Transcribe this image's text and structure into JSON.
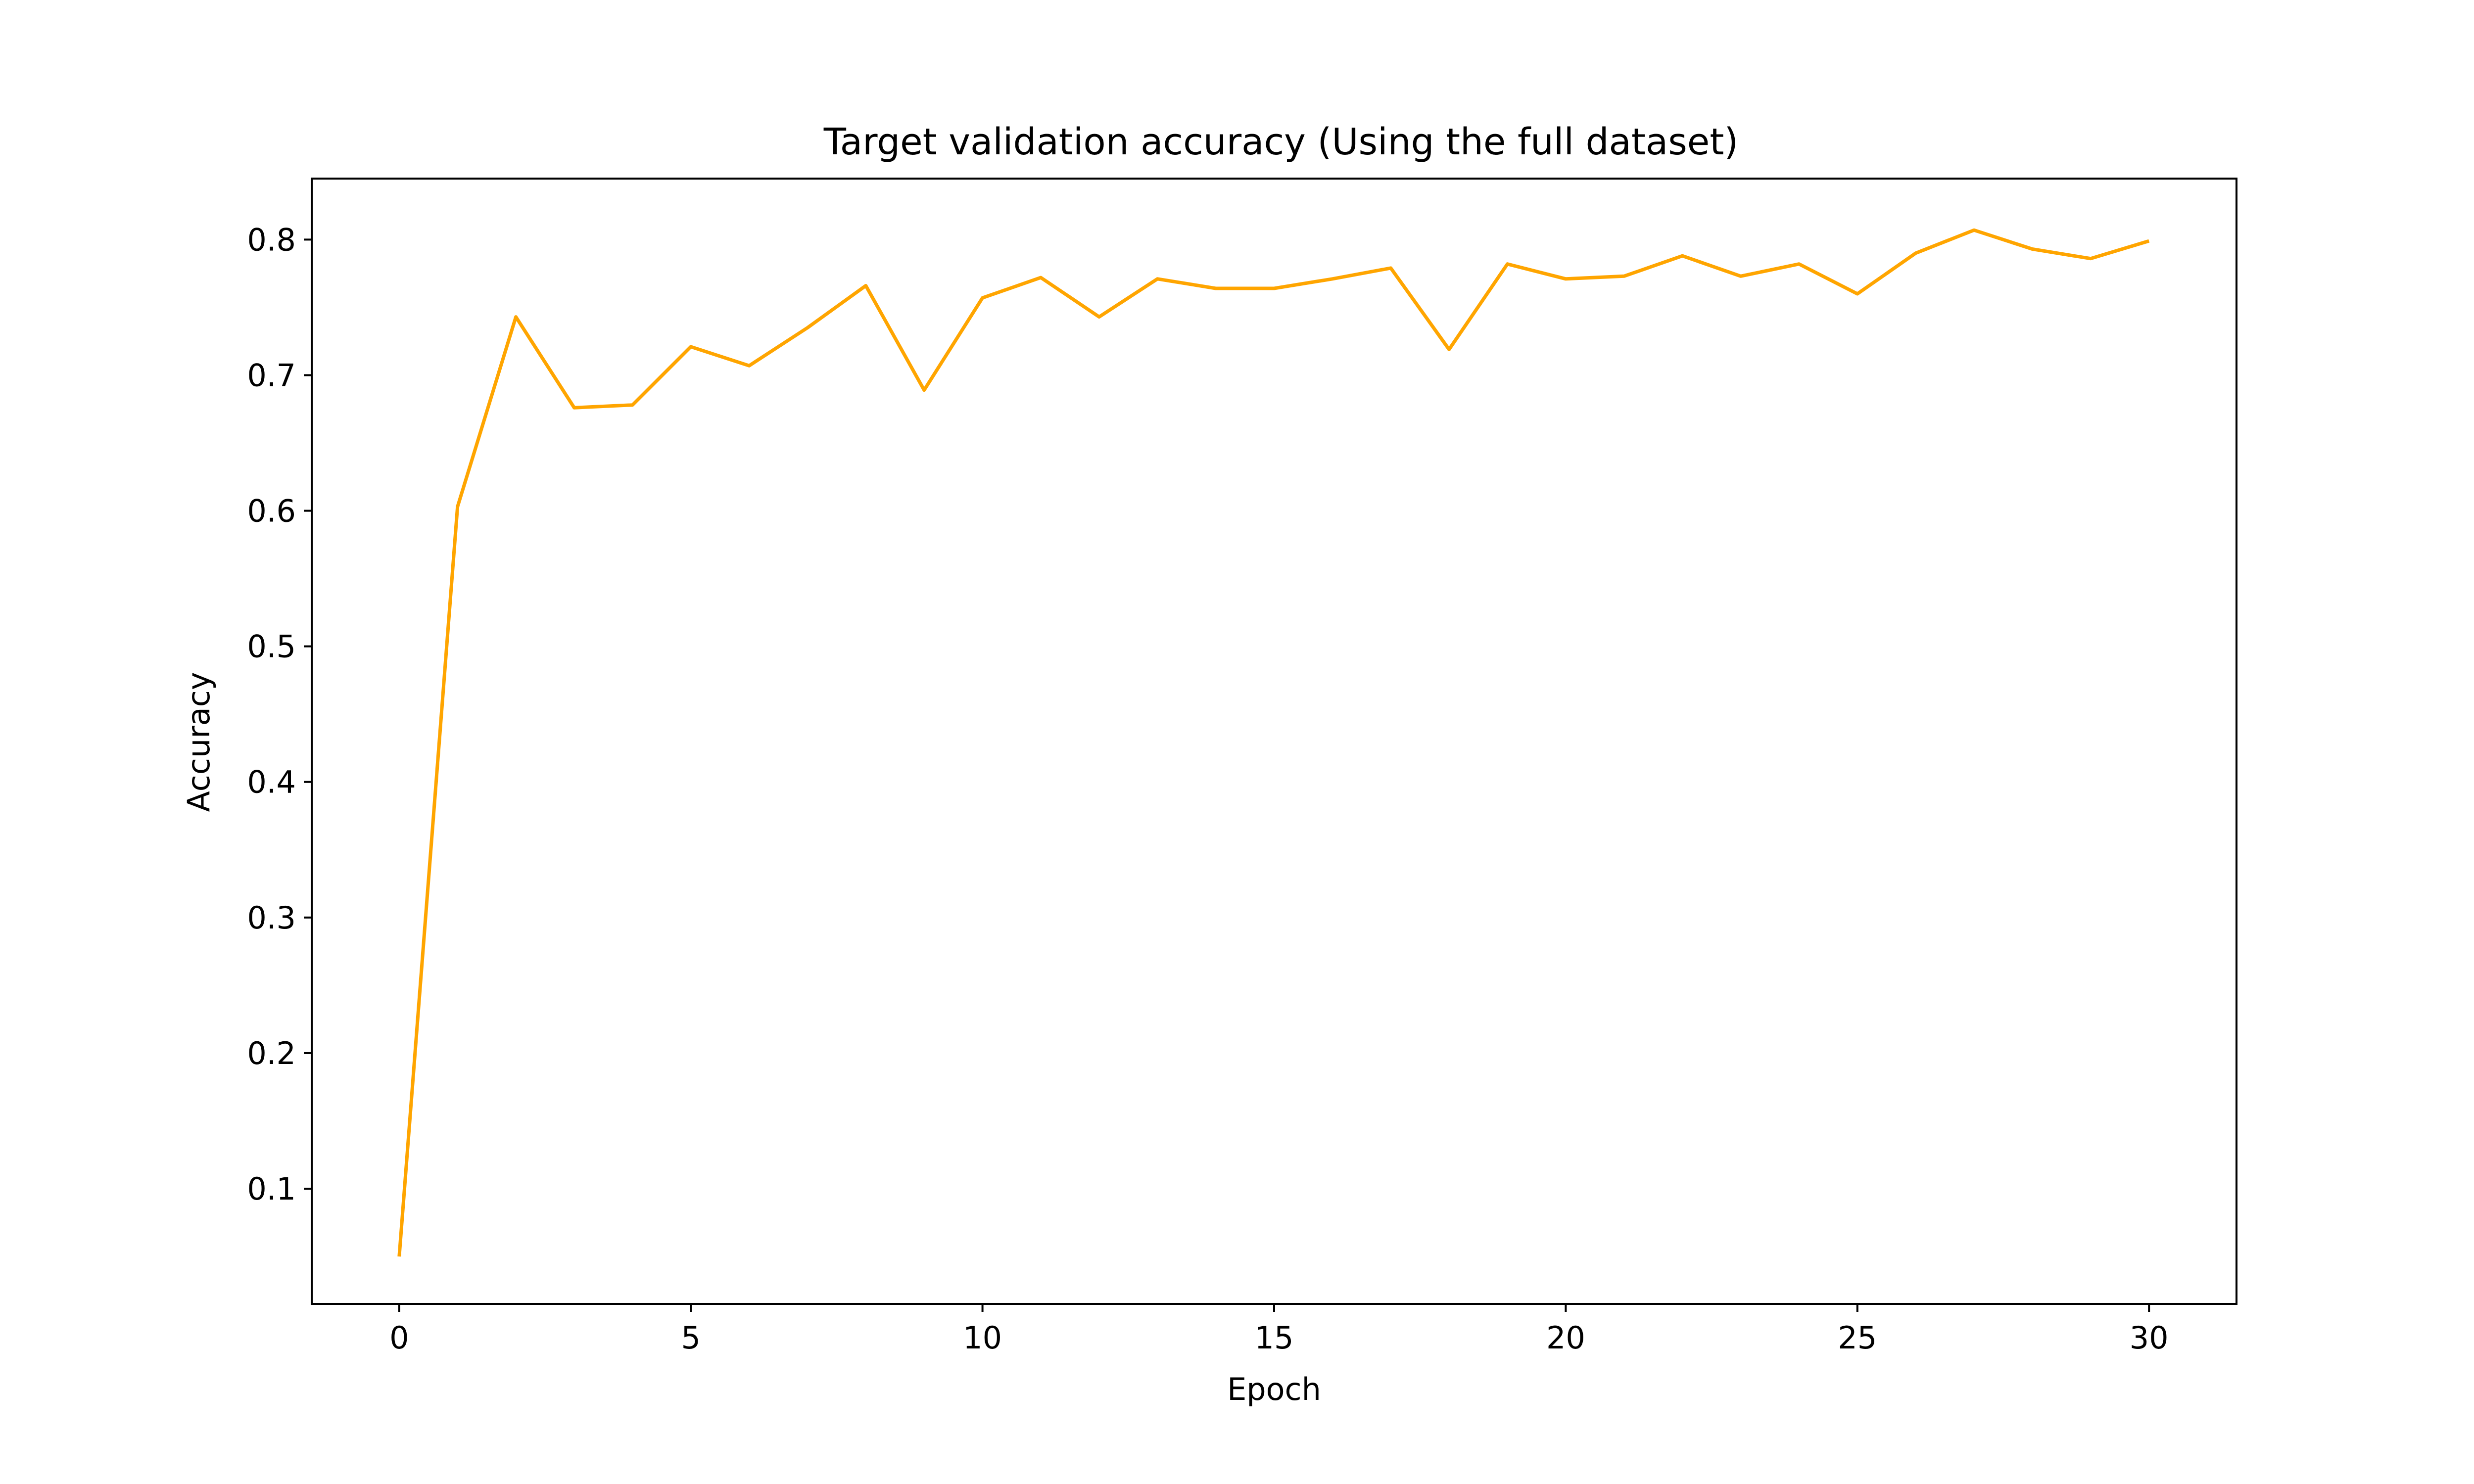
{
  "chart_data": {
    "type": "line",
    "title": "Target validation accuracy (Using the full dataset)",
    "xlabel": "Epoch",
    "ylabel": "Accuracy",
    "xlim": [
      -1.5,
      31.5
    ],
    "ylim": [
      0.015,
      0.845
    ],
    "xticks": [
      0,
      5,
      10,
      15,
      20,
      25,
      30
    ],
    "yticks": [
      0.1,
      0.2,
      0.3,
      0.4,
      0.5,
      0.6,
      0.7,
      0.8
    ],
    "xtick_labels": [
      "0",
      "5",
      "10",
      "15",
      "20",
      "25",
      "30"
    ],
    "ytick_labels": [
      "0.1",
      "0.2",
      "0.3",
      "0.4",
      "0.5",
      "0.6",
      "0.7",
      "0.8"
    ],
    "grid": false,
    "series": [
      {
        "color": "#FFA500",
        "x": [
          0,
          1,
          2,
          3,
          4,
          5,
          6,
          7,
          8,
          9,
          10,
          11,
          12,
          13,
          14,
          15,
          16,
          17,
          18,
          19,
          20,
          21,
          22,
          23,
          24,
          25,
          26,
          27,
          28,
          29,
          30
        ],
        "y": [
          0.05,
          0.603,
          0.743,
          0.676,
          0.678,
          0.721,
          0.707,
          0.735,
          0.766,
          0.689,
          0.757,
          0.772,
          0.743,
          0.771,
          0.764,
          0.764,
          0.771,
          0.779,
          0.719,
          0.782,
          0.771,
          0.773,
          0.788,
          0.773,
          0.782,
          0.76,
          0.79,
          0.807,
          0.793,
          0.786,
          0.799
        ]
      }
    ]
  }
}
